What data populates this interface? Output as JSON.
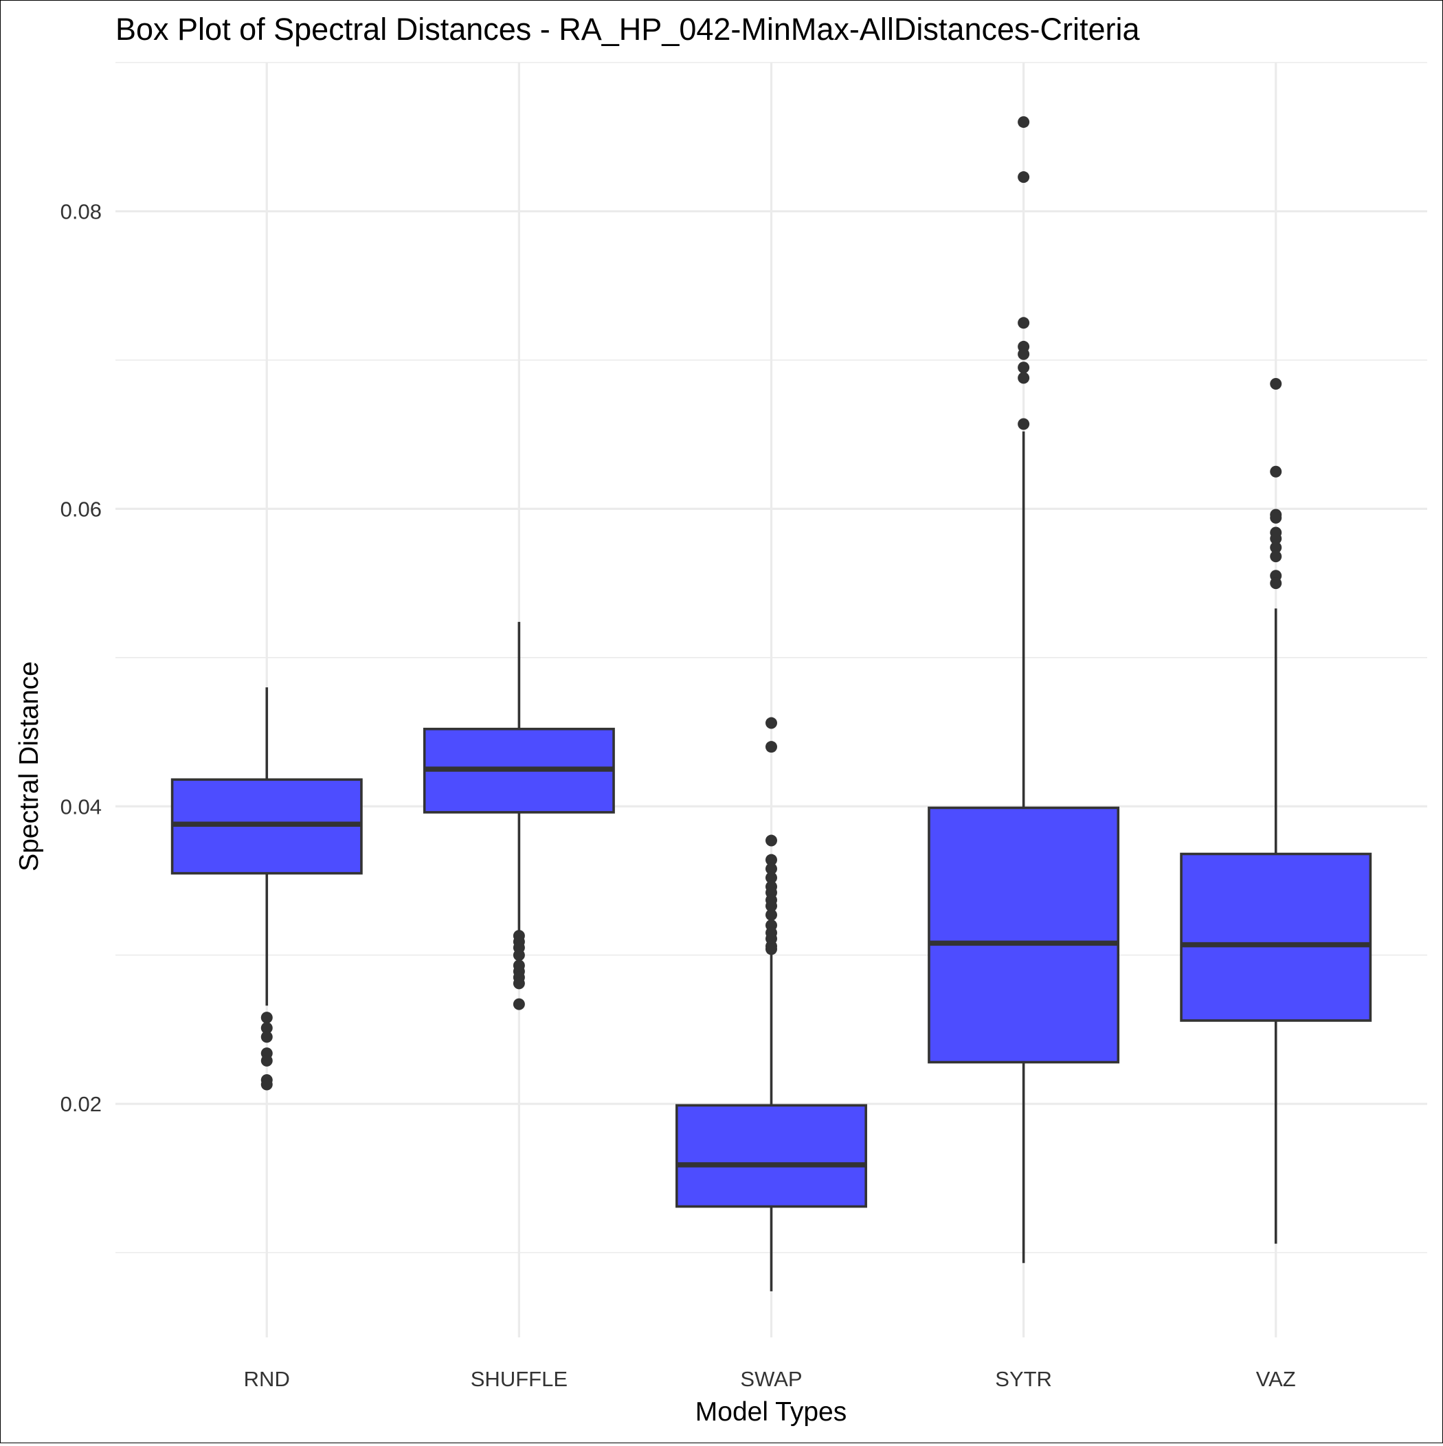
{
  "chart_data": {
    "type": "box",
    "title": "Box Plot of Spectral Distances -  RA_HP_042-MinMax-AllDistances-Criteria",
    "xlabel": "Model Types",
    "ylabel": "Spectral Distance",
    "categories": [
      "RND",
      "SHUFFLE",
      "SWAP",
      "SYTR",
      "VAZ"
    ],
    "ylim": [
      0.0043,
      0.09
    ],
    "yticks": [
      0.02,
      0.04,
      0.06,
      0.08
    ],
    "ytick_labels": [
      "0.02",
      "0.04",
      "0.06",
      "0.08"
    ],
    "grid": true,
    "fill_color": "#4d4dff",
    "line_color": "#333333",
    "boxes": [
      {
        "category": "RND",
        "whisker_low": 0.0266,
        "q1": 0.0355,
        "median": 0.0388,
        "q3": 0.0418,
        "whisker_high": 0.048,
        "outliers": [
          0.0258,
          0.0251,
          0.0245,
          0.0234,
          0.0229,
          0.0216,
          0.0213
        ]
      },
      {
        "category": "SHUFFLE",
        "whisker_low": 0.0315,
        "q1": 0.0396,
        "median": 0.0425,
        "q3": 0.0452,
        "whisker_high": 0.0524,
        "outliers": [
          0.0313,
          0.0309,
          0.0305,
          0.03,
          0.0293,
          0.0289,
          0.0285,
          0.0281,
          0.0267
        ]
      },
      {
        "category": "SWAP",
        "whisker_low": 0.0074,
        "q1": 0.0131,
        "median": 0.0159,
        "q3": 0.0199,
        "whisker_high": 0.0302,
        "outliers": [
          0.0456,
          0.044,
          0.0377,
          0.0364,
          0.0358,
          0.0352,
          0.0346,
          0.0342,
          0.0337,
          0.0333,
          0.0327,
          0.032,
          0.0315,
          0.0311,
          0.0306,
          0.0304
        ]
      },
      {
        "category": "SYTR",
        "whisker_low": 0.0093,
        "q1": 0.0228,
        "median": 0.0308,
        "q3": 0.0399,
        "whisker_high": 0.0652,
        "outliers": [
          0.086,
          0.0823,
          0.0725,
          0.0709,
          0.0704,
          0.0695,
          0.0688,
          0.0657
        ]
      },
      {
        "category": "VAZ",
        "whisker_low": 0.0106,
        "q1": 0.0256,
        "median": 0.0307,
        "q3": 0.0368,
        "whisker_high": 0.0533,
        "outliers": [
          0.0684,
          0.0625,
          0.0596,
          0.0594,
          0.0584,
          0.058,
          0.0574,
          0.0568,
          0.0555,
          0.055
        ]
      }
    ]
  }
}
